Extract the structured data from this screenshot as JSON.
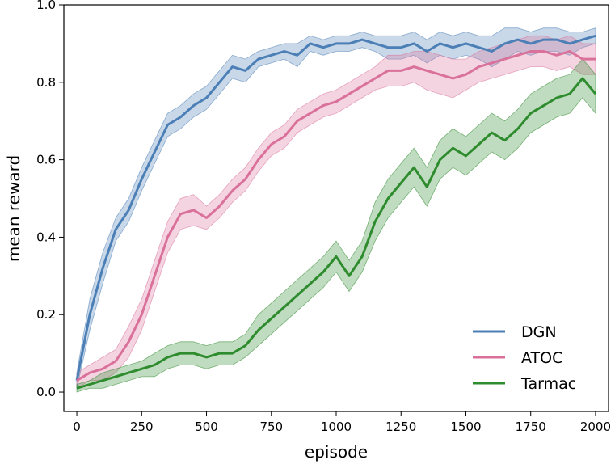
{
  "chart_data": {
    "type": "line",
    "title": "",
    "xlabel": "episode",
    "ylabel": "mean reward",
    "xlim": [
      -50,
      2050
    ],
    "ylim": [
      -0.05,
      1.0
    ],
    "xticks": [
      0,
      250,
      500,
      750,
      1000,
      1250,
      1500,
      1750,
      2000
    ],
    "xtick_labels": [
      "0",
      "250",
      "500",
      "750",
      "1000",
      "1250",
      "1500",
      "1750",
      "2000"
    ],
    "yticks": [
      0.0,
      0.2,
      0.4,
      0.6,
      0.8,
      1.0
    ],
    "ytick_labels": [
      "0.0",
      "0.2",
      "0.4",
      "0.6",
      "0.8",
      "1.0"
    ],
    "grid": false,
    "legend_position": "lower-right",
    "series": [
      {
        "name": "DGN",
        "color": "#4b7fb6",
        "x": [
          0,
          50,
          100,
          150,
          200,
          250,
          300,
          350,
          400,
          450,
          500,
          550,
          600,
          650,
          700,
          750,
          800,
          850,
          900,
          950,
          1000,
          1050,
          1100,
          1150,
          1200,
          1250,
          1300,
          1350,
          1400,
          1450,
          1500,
          1550,
          1600,
          1650,
          1700,
          1750,
          1800,
          1850,
          1900,
          1950,
          2000
        ],
        "y": [
          0.03,
          0.2,
          0.32,
          0.42,
          0.47,
          0.55,
          0.62,
          0.69,
          0.71,
          0.74,
          0.76,
          0.8,
          0.84,
          0.83,
          0.86,
          0.87,
          0.88,
          0.87,
          0.9,
          0.89,
          0.9,
          0.9,
          0.91,
          0.9,
          0.89,
          0.89,
          0.9,
          0.88,
          0.9,
          0.89,
          0.9,
          0.89,
          0.88,
          0.9,
          0.91,
          0.9,
          0.91,
          0.91,
          0.9,
          0.91,
          0.92
        ],
        "band": [
          0.02,
          0.04,
          0.04,
          0.03,
          0.03,
          0.03,
          0.03,
          0.03,
          0.03,
          0.03,
          0.03,
          0.03,
          0.03,
          0.03,
          0.02,
          0.02,
          0.02,
          0.03,
          0.02,
          0.02,
          0.02,
          0.02,
          0.02,
          0.02,
          0.03,
          0.03,
          0.03,
          0.03,
          0.03,
          0.03,
          0.03,
          0.03,
          0.04,
          0.04,
          0.03,
          0.03,
          0.03,
          0.03,
          0.03,
          0.02,
          0.02
        ]
      },
      {
        "name": "ATOC",
        "color": "#d9719a",
        "x": [
          0,
          50,
          100,
          150,
          200,
          250,
          300,
          350,
          400,
          450,
          500,
          550,
          600,
          650,
          700,
          750,
          800,
          850,
          900,
          950,
          1000,
          1050,
          1100,
          1150,
          1200,
          1250,
          1300,
          1350,
          1400,
          1450,
          1500,
          1550,
          1600,
          1650,
          1700,
          1750,
          1800,
          1850,
          1900,
          1950,
          2000
        ],
        "y": [
          0.03,
          0.05,
          0.06,
          0.08,
          0.13,
          0.2,
          0.3,
          0.4,
          0.46,
          0.47,
          0.45,
          0.48,
          0.52,
          0.55,
          0.6,
          0.64,
          0.66,
          0.7,
          0.72,
          0.74,
          0.75,
          0.77,
          0.79,
          0.81,
          0.83,
          0.83,
          0.84,
          0.83,
          0.82,
          0.81,
          0.82,
          0.84,
          0.85,
          0.86,
          0.87,
          0.88,
          0.88,
          0.87,
          0.88,
          0.86,
          0.86
        ],
        "band": [
          0.02,
          0.02,
          0.03,
          0.03,
          0.04,
          0.04,
          0.04,
          0.04,
          0.04,
          0.04,
          0.03,
          0.03,
          0.03,
          0.03,
          0.03,
          0.03,
          0.03,
          0.03,
          0.03,
          0.03,
          0.03,
          0.03,
          0.03,
          0.03,
          0.04,
          0.04,
          0.04,
          0.05,
          0.05,
          0.05,
          0.04,
          0.04,
          0.04,
          0.04,
          0.04,
          0.04,
          0.04,
          0.04,
          0.04,
          0.04,
          0.04
        ]
      },
      {
        "name": "Tarmac",
        "color": "#2e8b2e",
        "x": [
          0,
          50,
          100,
          150,
          200,
          250,
          300,
          350,
          400,
          450,
          500,
          550,
          600,
          650,
          700,
          750,
          800,
          850,
          900,
          950,
          1000,
          1050,
          1100,
          1150,
          1200,
          1250,
          1300,
          1350,
          1400,
          1450,
          1500,
          1550,
          1600,
          1650,
          1700,
          1750,
          1800,
          1850,
          1900,
          1950,
          2000
        ],
        "y": [
          0.01,
          0.02,
          0.03,
          0.04,
          0.05,
          0.06,
          0.07,
          0.09,
          0.1,
          0.1,
          0.09,
          0.1,
          0.1,
          0.12,
          0.16,
          0.19,
          0.22,
          0.25,
          0.28,
          0.31,
          0.35,
          0.3,
          0.35,
          0.44,
          0.5,
          0.54,
          0.58,
          0.53,
          0.6,
          0.63,
          0.61,
          0.64,
          0.67,
          0.65,
          0.68,
          0.72,
          0.74,
          0.76,
          0.77,
          0.81,
          0.77
        ],
        "band": [
          0.01,
          0.01,
          0.02,
          0.02,
          0.02,
          0.02,
          0.03,
          0.03,
          0.03,
          0.03,
          0.03,
          0.03,
          0.03,
          0.03,
          0.04,
          0.04,
          0.04,
          0.04,
          0.04,
          0.04,
          0.04,
          0.04,
          0.04,
          0.05,
          0.05,
          0.05,
          0.05,
          0.05,
          0.05,
          0.05,
          0.05,
          0.05,
          0.05,
          0.05,
          0.05,
          0.05,
          0.05,
          0.05,
          0.05,
          0.05,
          0.05
        ]
      }
    ]
  }
}
